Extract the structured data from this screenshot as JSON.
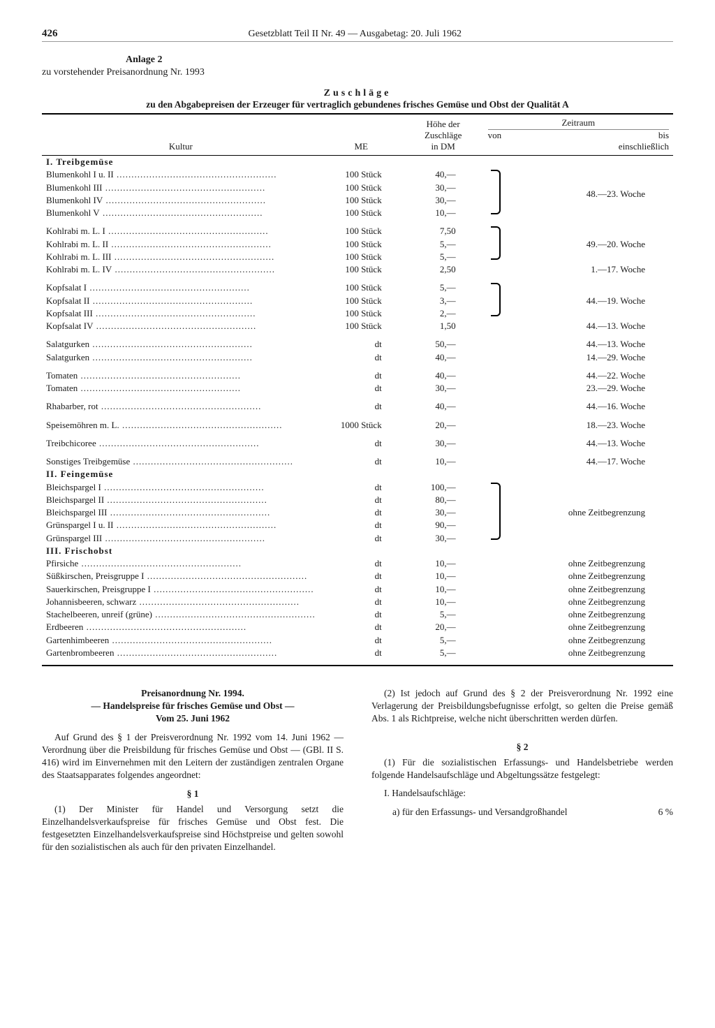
{
  "page_number": "426",
  "header": "Gesetzblatt Teil II Nr. 49 — Ausgabetag: 20. Juli 1962",
  "anlage_label": "Anlage 2",
  "anlage_sub": "zu vorstehender Preisanordnung Nr. 1993",
  "table_title": "Zuschläge",
  "table_sub": "zu den Abgabepreisen der Erzeuger für vertraglich gebundenes frisches Gemüse und Obst der Qualität A",
  "columns": {
    "kultur": "Kultur",
    "me": "ME",
    "hohe": "Höhe der\nZuschläge\nin DM",
    "zeit_header": "Zeitraum",
    "zeit_von": "von",
    "zeit_bis": "bis\neinschließlich"
  },
  "section1": "I. Treibgemüse",
  "section2": "II. Feingemüse",
  "section3": "III. Frischobst",
  "rows_s1a": [
    {
      "k": "Blumenkohl I u. II",
      "me": "100 Stück",
      "v": "40,—"
    },
    {
      "k": "Blumenkohl III",
      "me": "100 Stück",
      "v": "30,—"
    },
    {
      "k": "Blumenkohl IV",
      "me": "100 Stück",
      "v": "30,—"
    },
    {
      "k": "Blumenkohl V",
      "me": "100 Stück",
      "v": "10,—"
    }
  ],
  "zeit_s1a": "48.—23. Woche",
  "rows_s1b": [
    {
      "k": "Kohlrabi m. L. I",
      "me": "100 Stück",
      "v": "7,50"
    },
    {
      "k": "Kohlrabi m. L. II",
      "me": "100 Stück",
      "v": "5,—"
    },
    {
      "k": "Kohlrabi m. L. III",
      "me": "100 Stück",
      "v": "5,—"
    },
    {
      "k": "Kohlrabi m. L. IV",
      "me": "100 Stück",
      "v": "2,50"
    }
  ],
  "zeit_s1b1": "49.—20. Woche",
  "zeit_s1b2": "1.—17. Woche",
  "rows_s1c": [
    {
      "k": "Kopfsalat I",
      "me": "100 Stück",
      "v": "5,—"
    },
    {
      "k": "Kopfsalat II",
      "me": "100 Stück",
      "v": "3,—"
    },
    {
      "k": "Kopfsalat III",
      "me": "100 Stück",
      "v": "2,—"
    },
    {
      "k": "Kopfsalat IV",
      "me": "100 Stück",
      "v": "1,50"
    }
  ],
  "zeit_s1c1": "44.—19. Woche",
  "zeit_s1c2": "44.—13. Woche",
  "rows_s1d": [
    {
      "k": "Salatgurken",
      "me": "dt",
      "v": "50,—",
      "z": "44.—13. Woche"
    },
    {
      "k": "Salatgurken",
      "me": "dt",
      "v": "40,—",
      "z": "14.—29. Woche"
    }
  ],
  "rows_s1e": [
    {
      "k": "Tomaten",
      "me": "dt",
      "v": "40,—",
      "z": "44.—22. Woche"
    },
    {
      "k": "Tomaten",
      "me": "dt",
      "v": "30,—",
      "z": "23.—29. Woche"
    }
  ],
  "rows_s1f": [
    {
      "k": "Rhabarber, rot",
      "me": "dt",
      "v": "40,—",
      "z": "44.—16. Woche"
    }
  ],
  "rows_s1g": [
    {
      "k": "Speisemöhren m. L.",
      "me": "1000 Stück",
      "v": "20,—",
      "z": "18.—23. Woche"
    }
  ],
  "rows_s1h": [
    {
      "k": "Treibchicoree",
      "me": "dt",
      "v": "30,—",
      "z": "44.—13. Woche"
    }
  ],
  "rows_s1i": [
    {
      "k": "Sonstiges Treibgemüse",
      "me": "dt",
      "v": "10,—",
      "z": "44.—17. Woche"
    }
  ],
  "rows_s2a": [
    {
      "k": "Bleichspargel I",
      "me": "dt",
      "v": "100,—"
    },
    {
      "k": "Bleichspargel II",
      "me": "dt",
      "v": "80,—"
    },
    {
      "k": "Bleichspargel III",
      "me": "dt",
      "v": "30,—"
    },
    {
      "k": "Grünspargel I u. II",
      "me": "dt",
      "v": "90,—"
    },
    {
      "k": "Grünspargel III",
      "me": "dt",
      "v": "30,—"
    }
  ],
  "zeit_s2": "ohne Zeitbegrenzung",
  "rows_s3": [
    {
      "k": "Pfirsiche",
      "me": "dt",
      "v": "10,—",
      "z": "ohne Zeitbegrenzung"
    },
    {
      "k": "Süßkirschen, Preisgruppe I",
      "me": "dt",
      "v": "10,—",
      "z": "ohne Zeitbegrenzung"
    },
    {
      "k": "Sauerkirschen, Preisgruppe I",
      "me": "dt",
      "v": "10,—",
      "z": "ohne Zeitbegrenzung"
    },
    {
      "k": "Johannisbeeren, schwarz",
      "me": "dt",
      "v": "10,—",
      "z": "ohne Zeitbegrenzung"
    },
    {
      "k": "Stachelbeeren, unreif (grüne)",
      "me": "dt",
      "v": "5,—",
      "z": "ohne Zeitbegrenzung"
    },
    {
      "k": "Erdbeeren",
      "me": "dt",
      "v": "20,—",
      "z": "ohne Zeitbegrenzung"
    },
    {
      "k": "Gartenhimbeeren",
      "me": "dt",
      "v": "5,—",
      "z": "ohne Zeitbegrenzung"
    },
    {
      "k": "Gartenbrombeeren",
      "me": "dt",
      "v": "5,—",
      "z": "ohne Zeitbegrenzung"
    }
  ],
  "ord": {
    "title": "Preisanordnung Nr. 1994.",
    "subtitle": "— Handelspreise für frisches Gemüse und Obst —",
    "date": "Vom 25. Juni 1962",
    "p1": "Auf Grund des § 1 der Preisverordnung Nr. 1992 vom 14. Juni 1962 — Verordnung über die Preisbildung für frisches Gemüse und Obst — (GBl. II S. 416) wird im Einvernehmen mit den Leitern der zuständigen zentralen Organe des Staatsapparates folgendes angeordnet:",
    "para1": "§ 1",
    "p2": "(1) Der Minister für Handel und Versorgung setzt die Einzelhandelsverkaufspreise für frisches Gemüse und Obst fest. Die festgesetzten Einzelhandelsverkaufspreise sind Höchstpreise und gelten sowohl für den sozialistischen als auch für den privaten Einzelhandel.",
    "p3": "(2) Ist jedoch auf Grund des § 2 der Preisverordnung Nr. 1992 eine Verlagerung der Preisbildungsbefugnisse erfolgt, so gelten die Preise gemäß Abs. 1 als Richtpreise, welche nicht überschritten werden dürfen.",
    "para2": "§ 2",
    "p4": "(1) Für die sozialistischen Erfassungs- und Handelsbetriebe werden folgende Handelsaufschläge und Abgeltungssätze festgelegt:",
    "p5": "I. Handelsaufschläge:",
    "p6a": "a) für den Erfassungs- und Versandgroßhandel",
    "p6b": "6 %"
  }
}
